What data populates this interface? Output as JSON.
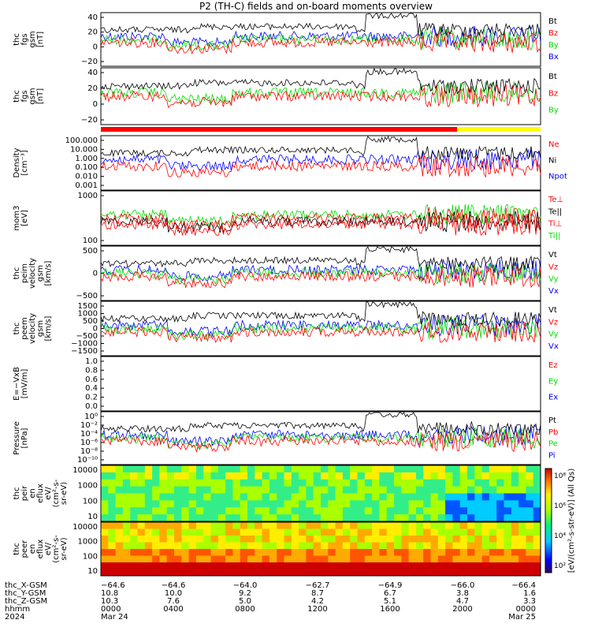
{
  "title": "P2 (TH-C) fields and on-board moments overview",
  "colors": {
    "black": "#000000",
    "red": "#ff0000",
    "green": "#00dd00",
    "blue": "#0000ff",
    "yellow": "#ffff00"
  },
  "chart_data": [
    {
      "type": "line",
      "ylabel": [
        "thc",
        "fgs",
        "gsm",
        "[nT]"
      ],
      "yticks": [
        "40",
        "20",
        "0",
        "−20"
      ],
      "series": [
        {
          "name": "Bt",
          "color": "#000000"
        },
        {
          "name": "Bz",
          "color": "#ff0000"
        },
        {
          "name": "By",
          "color": "#00dd00"
        },
        {
          "name": "Bx",
          "color": "#0000ff"
        }
      ]
    },
    {
      "type": "line",
      "ylabel": [
        "thc",
        "fgs",
        "gsm",
        "[nT]"
      ],
      "yticks": [
        "40",
        "20",
        "0",
        "−20"
      ],
      "series": [
        {
          "name": "Bt",
          "color": "#000000"
        },
        {
          "name": "Bz",
          "color": "#ff0000"
        },
        {
          "name": "By",
          "color": "#00dd00"
        }
      ]
    },
    {
      "type": "line",
      "ylabel": [
        "Density",
        "[cm⁻³]"
      ],
      "yticks": [
        "100.000",
        "10.000",
        "1.000",
        "0.100",
        "0.010",
        "0.001"
      ],
      "series": [
        {
          "name": "Ne",
          "color": "#ff0000"
        },
        {
          "name": "Ni",
          "color": "#000000"
        },
        {
          "name": "Npot",
          "color": "#0000ff"
        }
      ]
    },
    {
      "type": "line",
      "ylabel": [
        "mom3",
        "[eV]"
      ],
      "yticks": [
        "1000",
        "100"
      ],
      "series": [
        {
          "name": "Te⊥",
          "color": "#ff0000"
        },
        {
          "name": "Te||",
          "color": "#000000"
        },
        {
          "name": "Ti⊥",
          "color": "#ff0000"
        },
        {
          "name": "Ti||",
          "color": "#00dd00"
        }
      ]
    },
    {
      "type": "line",
      "ylabel": [
        "thc",
        "peim",
        "velocity",
        "gsm",
        "[km/s]"
      ],
      "yticks": [
        "500",
        "0",
        "−500"
      ],
      "series": [
        {
          "name": "Vt",
          "color": "#000000"
        },
        {
          "name": "Vz",
          "color": "#ff0000"
        },
        {
          "name": "Vy",
          "color": "#00dd00"
        },
        {
          "name": "Vx",
          "color": "#0000ff"
        }
      ]
    },
    {
      "type": "line",
      "ylabel": [
        "thc",
        "peem",
        "velocity",
        "gsm",
        "[km/s]"
      ],
      "yticks": [
        "1500",
        "1000",
        "500",
        "0",
        "−500",
        "−1000",
        "−1500"
      ],
      "series": [
        {
          "name": "Vt",
          "color": "#000000"
        },
        {
          "name": "Vz",
          "color": "#ff0000"
        },
        {
          "name": "Vy",
          "color": "#00dd00"
        },
        {
          "name": "Vx",
          "color": "#0000ff"
        }
      ]
    },
    {
      "type": "line",
      "ylabel": [
        "E=−VxB",
        "[mV/m]"
      ],
      "yticks": [
        "1.0",
        "0.8",
        "0.6",
        "0.4",
        "0.2",
        "0.0"
      ],
      "series": [
        {
          "name": "Ez",
          "color": "#ff0000"
        },
        {
          "name": "Ey",
          "color": "#00dd00"
        },
        {
          "name": "Ex",
          "color": "#0000ff"
        }
      ]
    },
    {
      "type": "line",
      "ylabel": [
        "Pressure",
        "[nPa]"
      ],
      "yticks": [
        "10⁰",
        "10⁻²",
        "10⁻⁴",
        "10⁻⁶",
        "10⁻⁸",
        "10⁻¹⁰"
      ],
      "series": [
        {
          "name": "Pt",
          "color": "#000000"
        },
        {
          "name": "Pb",
          "color": "#ff0000"
        },
        {
          "name": "Pe",
          "color": "#00dd00"
        },
        {
          "name": "Pi",
          "color": "#0000ff"
        }
      ]
    },
    {
      "type": "heatmap",
      "ylabel": [
        "thc",
        "peir",
        "en",
        "eflux",
        "eV/",
        "(cm²-s-",
        "sr-eV)"
      ],
      "yticks": [
        "10000",
        "1000",
        "100",
        "10"
      ]
    },
    {
      "type": "heatmap",
      "ylabel": [
        "thc",
        "peer",
        "en",
        "eflux",
        "eV/",
        "(cm²-s-",
        "sr-eV)"
      ],
      "yticks": [
        "10000",
        "1000",
        "100",
        "10"
      ]
    }
  ],
  "colorbar": {
    "ticks": [
      "10⁸",
      "10⁶",
      "10⁴",
      "10²"
    ],
    "label": "[eV/(cm²-s-str-eV)] (All Qs)"
  },
  "x_axis": {
    "rows": [
      {
        "label": "thc_X-GSM",
        "values": [
          "−64.6",
          "−64.6",
          "−64.0",
          "−62.7",
          "−64.9",
          "−66.0",
          "−66.4"
        ]
      },
      {
        "label": "thc_Y-GSM",
        "values": [
          "10.8",
          "10.0",
          "9.2",
          "8.7",
          "6.7",
          "3.8",
          "1.6"
        ]
      },
      {
        "label": "thc_Z-GSM",
        "values": [
          "10.3",
          "7.6",
          "5.0",
          "4.2",
          "5.1",
          "4.7",
          "3.3"
        ]
      },
      {
        "label": "hhmm",
        "values": [
          "0000",
          "0400",
          "0800",
          "1200",
          "1600",
          "2000",
          "0000"
        ]
      },
      {
        "label": "2024",
        "values": [
          "Mar 24",
          "",
          "",
          "",
          "",
          "",
          "Mar 25"
        ]
      }
    ]
  }
}
